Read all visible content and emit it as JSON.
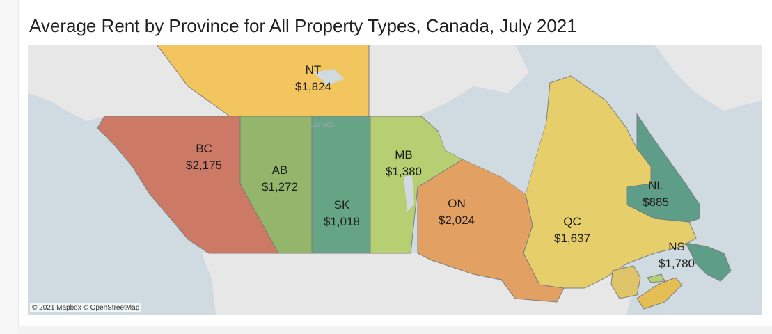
{
  "title": "Average Rent by Province for All Property Types, Canada, July 2021",
  "attribution": "© 2021 Mapbox © OpenStreetMap",
  "basemap_label": "Canada",
  "colors": {
    "ocean": "#cfdbe0",
    "land_other": "#e8e8e8",
    "NT": "#f2c55e",
    "BC": "#cc7a66",
    "AB": "#93b66a",
    "SK": "#66a486",
    "MB": "#b5cf72",
    "ON": "#e3a063",
    "QC": "#e6cf6a",
    "NL": "#5e9d88",
    "NS": "#e4bd55",
    "NB": "#dfc46a",
    "PE": "#b7cf79"
  },
  "provinces": [
    {
      "code": "NT",
      "rent": "$1,824"
    },
    {
      "code": "BC",
      "rent": "$2,175"
    },
    {
      "code": "AB",
      "rent": "$1,272"
    },
    {
      "code": "SK",
      "rent": "$1,018"
    },
    {
      "code": "MB",
      "rent": "$1,380"
    },
    {
      "code": "ON",
      "rent": "$2,024"
    },
    {
      "code": "QC",
      "rent": "$1,637"
    },
    {
      "code": "NL",
      "rent": "$885"
    },
    {
      "code": "NS",
      "rent": "$1,780"
    }
  ]
}
